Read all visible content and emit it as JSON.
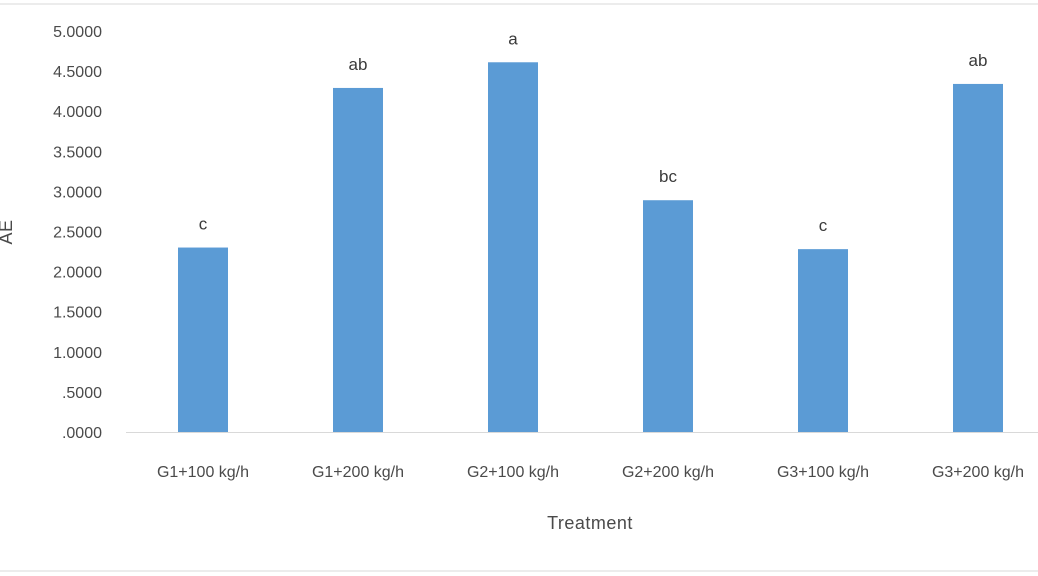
{
  "chart_data": {
    "type": "bar",
    "xlabel": "Treatment",
    "ylabel": "AE",
    "ylim": [
      0,
      5
    ],
    "yticks": [
      ".0000",
      ".5000",
      "1.0000",
      "1.5000",
      "2.0000",
      "2.5000",
      "3.0000",
      "3.5000",
      "4.0000",
      "4.5000",
      "5.0000"
    ],
    "categories": [
      "G1+100 kg/h",
      "G1+200 kg/h",
      "G2+100 kg/h",
      "G2+200 kg/h",
      "G3+100 kg/h",
      "G3+200 kg/h"
    ],
    "values": [
      2.3,
      4.29,
      4.61,
      2.89,
      2.28,
      4.34
    ],
    "data_labels": [
      "c",
      "ab",
      "a",
      "bc",
      "c",
      "ab"
    ],
    "bar_color": "#5b9bd5",
    "axis_color": "#d9d9d9",
    "grid": false,
    "legend": "none"
  }
}
